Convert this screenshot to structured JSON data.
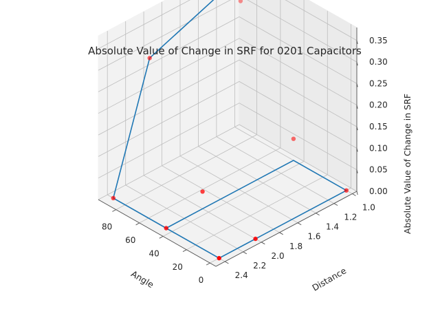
{
  "chart_data": {
    "type": "scatter",
    "title": "Absolute Value of Change in SRF for 0201 Capacitors",
    "xlabel": "Angle",
    "ylabel": "Distance",
    "zlabel": "Absolute Value of Change in SRF",
    "x_ticks": [
      "0",
      "20",
      "40",
      "60",
      "80"
    ],
    "y_ticks": [
      "1.0",
      "1.2",
      "1.4",
      "1.6",
      "1.8",
      "2.0",
      "2.2",
      "2.4"
    ],
    "z_ticks": [
      "0.00",
      "0.05",
      "0.10",
      "0.15",
      "0.20",
      "0.25",
      "0.30",
      "0.35"
    ],
    "xlim": [
      -5,
      95
    ],
    "ylim": [
      0.95,
      2.5
    ],
    "zlim": [
      0,
      0.38
    ],
    "grid": true,
    "line_series": {
      "color": "#1f77b4",
      "points": [
        {
          "angle": 90,
          "distance": 1.0,
          "value": 0.36
        },
        {
          "angle": 90,
          "distance": 2.0,
          "value": 0.28
        },
        {
          "angle": 90,
          "distance": 2.4,
          "value": 0.0
        },
        {
          "angle": 45,
          "distance": 2.4,
          "value": 0.0
        },
        {
          "angle": 0,
          "distance": 2.4,
          "value": 0.0
        },
        {
          "angle": 0,
          "distance": 2.0,
          "value": 0.0
        },
        {
          "angle": 0,
          "distance": 1.0,
          "value": 0.0
        },
        {
          "angle": 45,
          "distance": 1.0,
          "value": 0.0
        },
        {
          "angle": 45,
          "distance": 2.0,
          "value": 0.0
        },
        {
          "angle": 45,
          "distance": 2.4,
          "value": 0.0
        }
      ]
    },
    "scatter_series": {
      "color": "#ff0000",
      "points": [
        {
          "angle": 90,
          "distance": 1.0,
          "value": 0.3
        },
        {
          "angle": 90,
          "distance": 2.0,
          "value": 0.28
        },
        {
          "angle": 90,
          "distance": 2.4,
          "value": 0.0
        },
        {
          "angle": 45,
          "distance": 1.0,
          "value": 0.05
        },
        {
          "angle": 45,
          "distance": 2.0,
          "value": 0.04
        },
        {
          "angle": 45,
          "distance": 2.4,
          "value": 0.0
        },
        {
          "angle": 0,
          "distance": 1.0,
          "value": 0.0
        },
        {
          "angle": 0,
          "distance": 2.0,
          "value": 0.0
        },
        {
          "angle": 0,
          "distance": 2.4,
          "value": 0.0
        }
      ]
    }
  }
}
